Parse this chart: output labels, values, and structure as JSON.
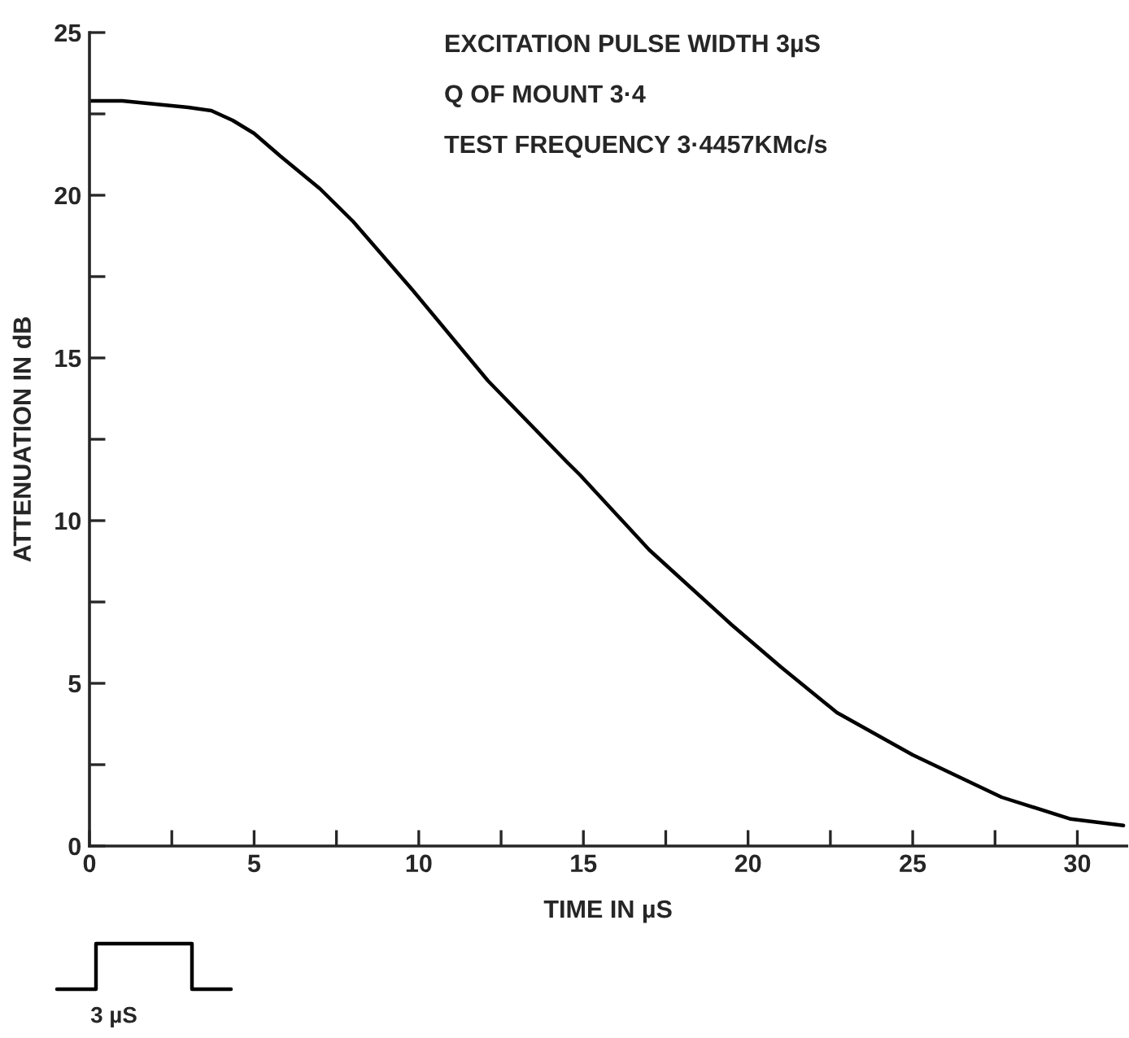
{
  "chart_data": {
    "type": "line",
    "xlabel": "TIME IN µS",
    "ylabel": "ATTENUATION IN dB",
    "annotations": [
      "EXCITATION PULSE WIDTH 3µS",
      "Q OF MOUNT 3·4",
      "TEST FREQUENCY 3·4457KMc/s",
      "3 µS"
    ],
    "series": [
      {
        "color": "#000000",
        "x": [
          0,
          1,
          2,
          3,
          3.7,
          4.35,
          5,
          5.8,
          7,
          8.0,
          9.8,
          12.1,
          14.5,
          14.9,
          17,
          19.5,
          21,
          22.7,
          25.0,
          27.7,
          29.8,
          31.4
        ],
        "values": [
          22.9,
          22.9,
          22.8,
          22.7,
          22.6,
          22.3,
          21.9,
          21.2,
          20.2,
          19.2,
          17.1,
          14.3,
          11.8,
          11.4,
          9.1,
          6.8,
          5.5,
          4.1,
          2.8,
          1.5,
          0.83,
          0.63
        ]
      }
    ],
    "xlim": [
      0,
      31.5
    ],
    "ylim": [
      0,
      25
    ],
    "xticks": [
      0,
      {
        "value": 2.5,
        "label": null
      },
      5,
      {
        "value": 7.5,
        "label": null
      },
      10,
      {
        "value": 12.5,
        "label": null
      },
      15,
      {
        "value": 17.5,
        "label": null
      },
      20,
      {
        "value": 22.5,
        "label": null
      },
      25,
      {
        "value": 27.5,
        "label": null
      },
      30
    ],
    "yticks": [
      0,
      {
        "value": 2.5,
        "label": null
      },
      5,
      {
        "value": 7.5,
        "label": null
      },
      10,
      {
        "value": 12.5,
        "label": null
      },
      15,
      {
        "value": 17.5,
        "label": null
      },
      20,
      {
        "value": 22.5,
        "label": null
      },
      25
    ],
    "grid": false,
    "legend": false,
    "marker": "none",
    "line_style": "solid"
  }
}
